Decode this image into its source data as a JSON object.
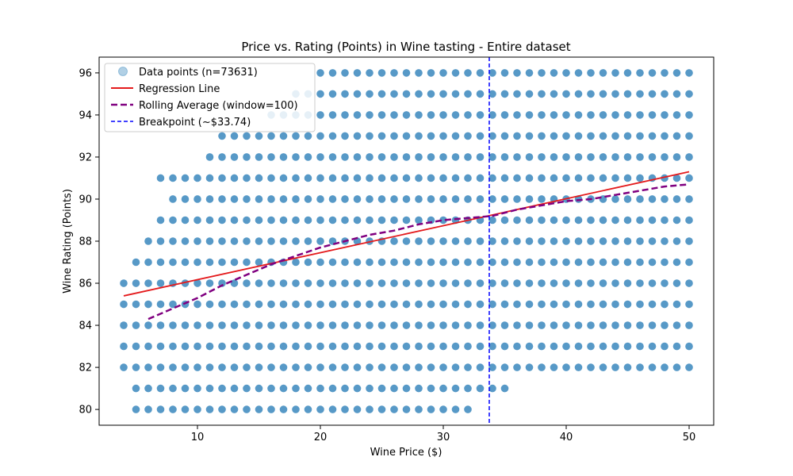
{
  "chart_data": {
    "type": "scatter",
    "title": "Price vs. Rating (Points) in Wine tasting - Entire dataset",
    "xlabel": "Wine Price ($)",
    "ylabel": "Wine Rating (Points)",
    "xlim": [
      2,
      52
    ],
    "ylim": [
      79.25,
      96.75
    ],
    "xticks": [
      10,
      20,
      30,
      40,
      50
    ],
    "yticks": [
      80,
      82,
      84,
      86,
      88,
      90,
      92,
      94,
      96
    ],
    "grid": false,
    "legend_position": "top-left",
    "colors": {
      "points": "#1f77b4",
      "regression": "#e41a1c",
      "rolling": "#800080",
      "breakpoint": "#0000ff"
    },
    "series": [
      {
        "name": "Data points (n=73631)",
        "kind": "scatter",
        "x_range": [
          4,
          50
        ],
        "y_levels": [
          80,
          81,
          82,
          83,
          84,
          85,
          86,
          87,
          88,
          89,
          90,
          91,
          92,
          93,
          94,
          95,
          96
        ],
        "x_step": 1,
        "row_extents": [
          {
            "y": 80,
            "x": [
              5,
              32
            ]
          },
          {
            "y": 81,
            "x": [
              5,
              35
            ]
          },
          {
            "y": 82,
            "x": [
              4,
              50
            ]
          },
          {
            "y": 83,
            "x": [
              4,
              50
            ]
          },
          {
            "y": 84,
            "x": [
              4,
              50
            ]
          },
          {
            "y": 85,
            "x": [
              4,
              50
            ]
          },
          {
            "y": 86,
            "x": [
              4,
              50
            ]
          },
          {
            "y": 87,
            "x": [
              5,
              50
            ]
          },
          {
            "y": 88,
            "x": [
              6,
              50
            ]
          },
          {
            "y": 89,
            "x": [
              7,
              50
            ]
          },
          {
            "y": 90,
            "x": [
              8,
              50
            ]
          },
          {
            "y": 91,
            "x": [
              7,
              50
            ]
          },
          {
            "y": 92,
            "x": [
              11,
              50
            ]
          },
          {
            "y": 93,
            "x": [
              12,
              50
            ]
          },
          {
            "y": 94,
            "x": [
              16,
              50
            ]
          },
          {
            "y": 95,
            "x": [
              18,
              50
            ]
          },
          {
            "y": 96,
            "x": [
              20,
              50
            ]
          }
        ]
      },
      {
        "name": "Regression Line",
        "kind": "line",
        "x": [
          4,
          50
        ],
        "y": [
          85.4,
          91.3
        ]
      },
      {
        "name": "Rolling Average (window=100)",
        "kind": "line",
        "x": [
          6,
          8,
          10,
          12,
          14,
          16,
          18,
          20,
          22,
          24,
          26,
          28,
          30,
          32,
          34,
          36,
          38,
          40,
          42,
          44,
          46,
          48,
          50
        ],
        "y": [
          84.3,
          84.8,
          85.3,
          85.9,
          86.4,
          86.9,
          87.3,
          87.7,
          88.0,
          88.3,
          88.5,
          88.8,
          89.0,
          89.1,
          89.2,
          89.5,
          89.7,
          89.9,
          90.0,
          90.2,
          90.4,
          90.6,
          90.7
        ]
      },
      {
        "name": "Breakpoint (~$33.74)",
        "kind": "vline",
        "x": 33.74
      }
    ]
  }
}
